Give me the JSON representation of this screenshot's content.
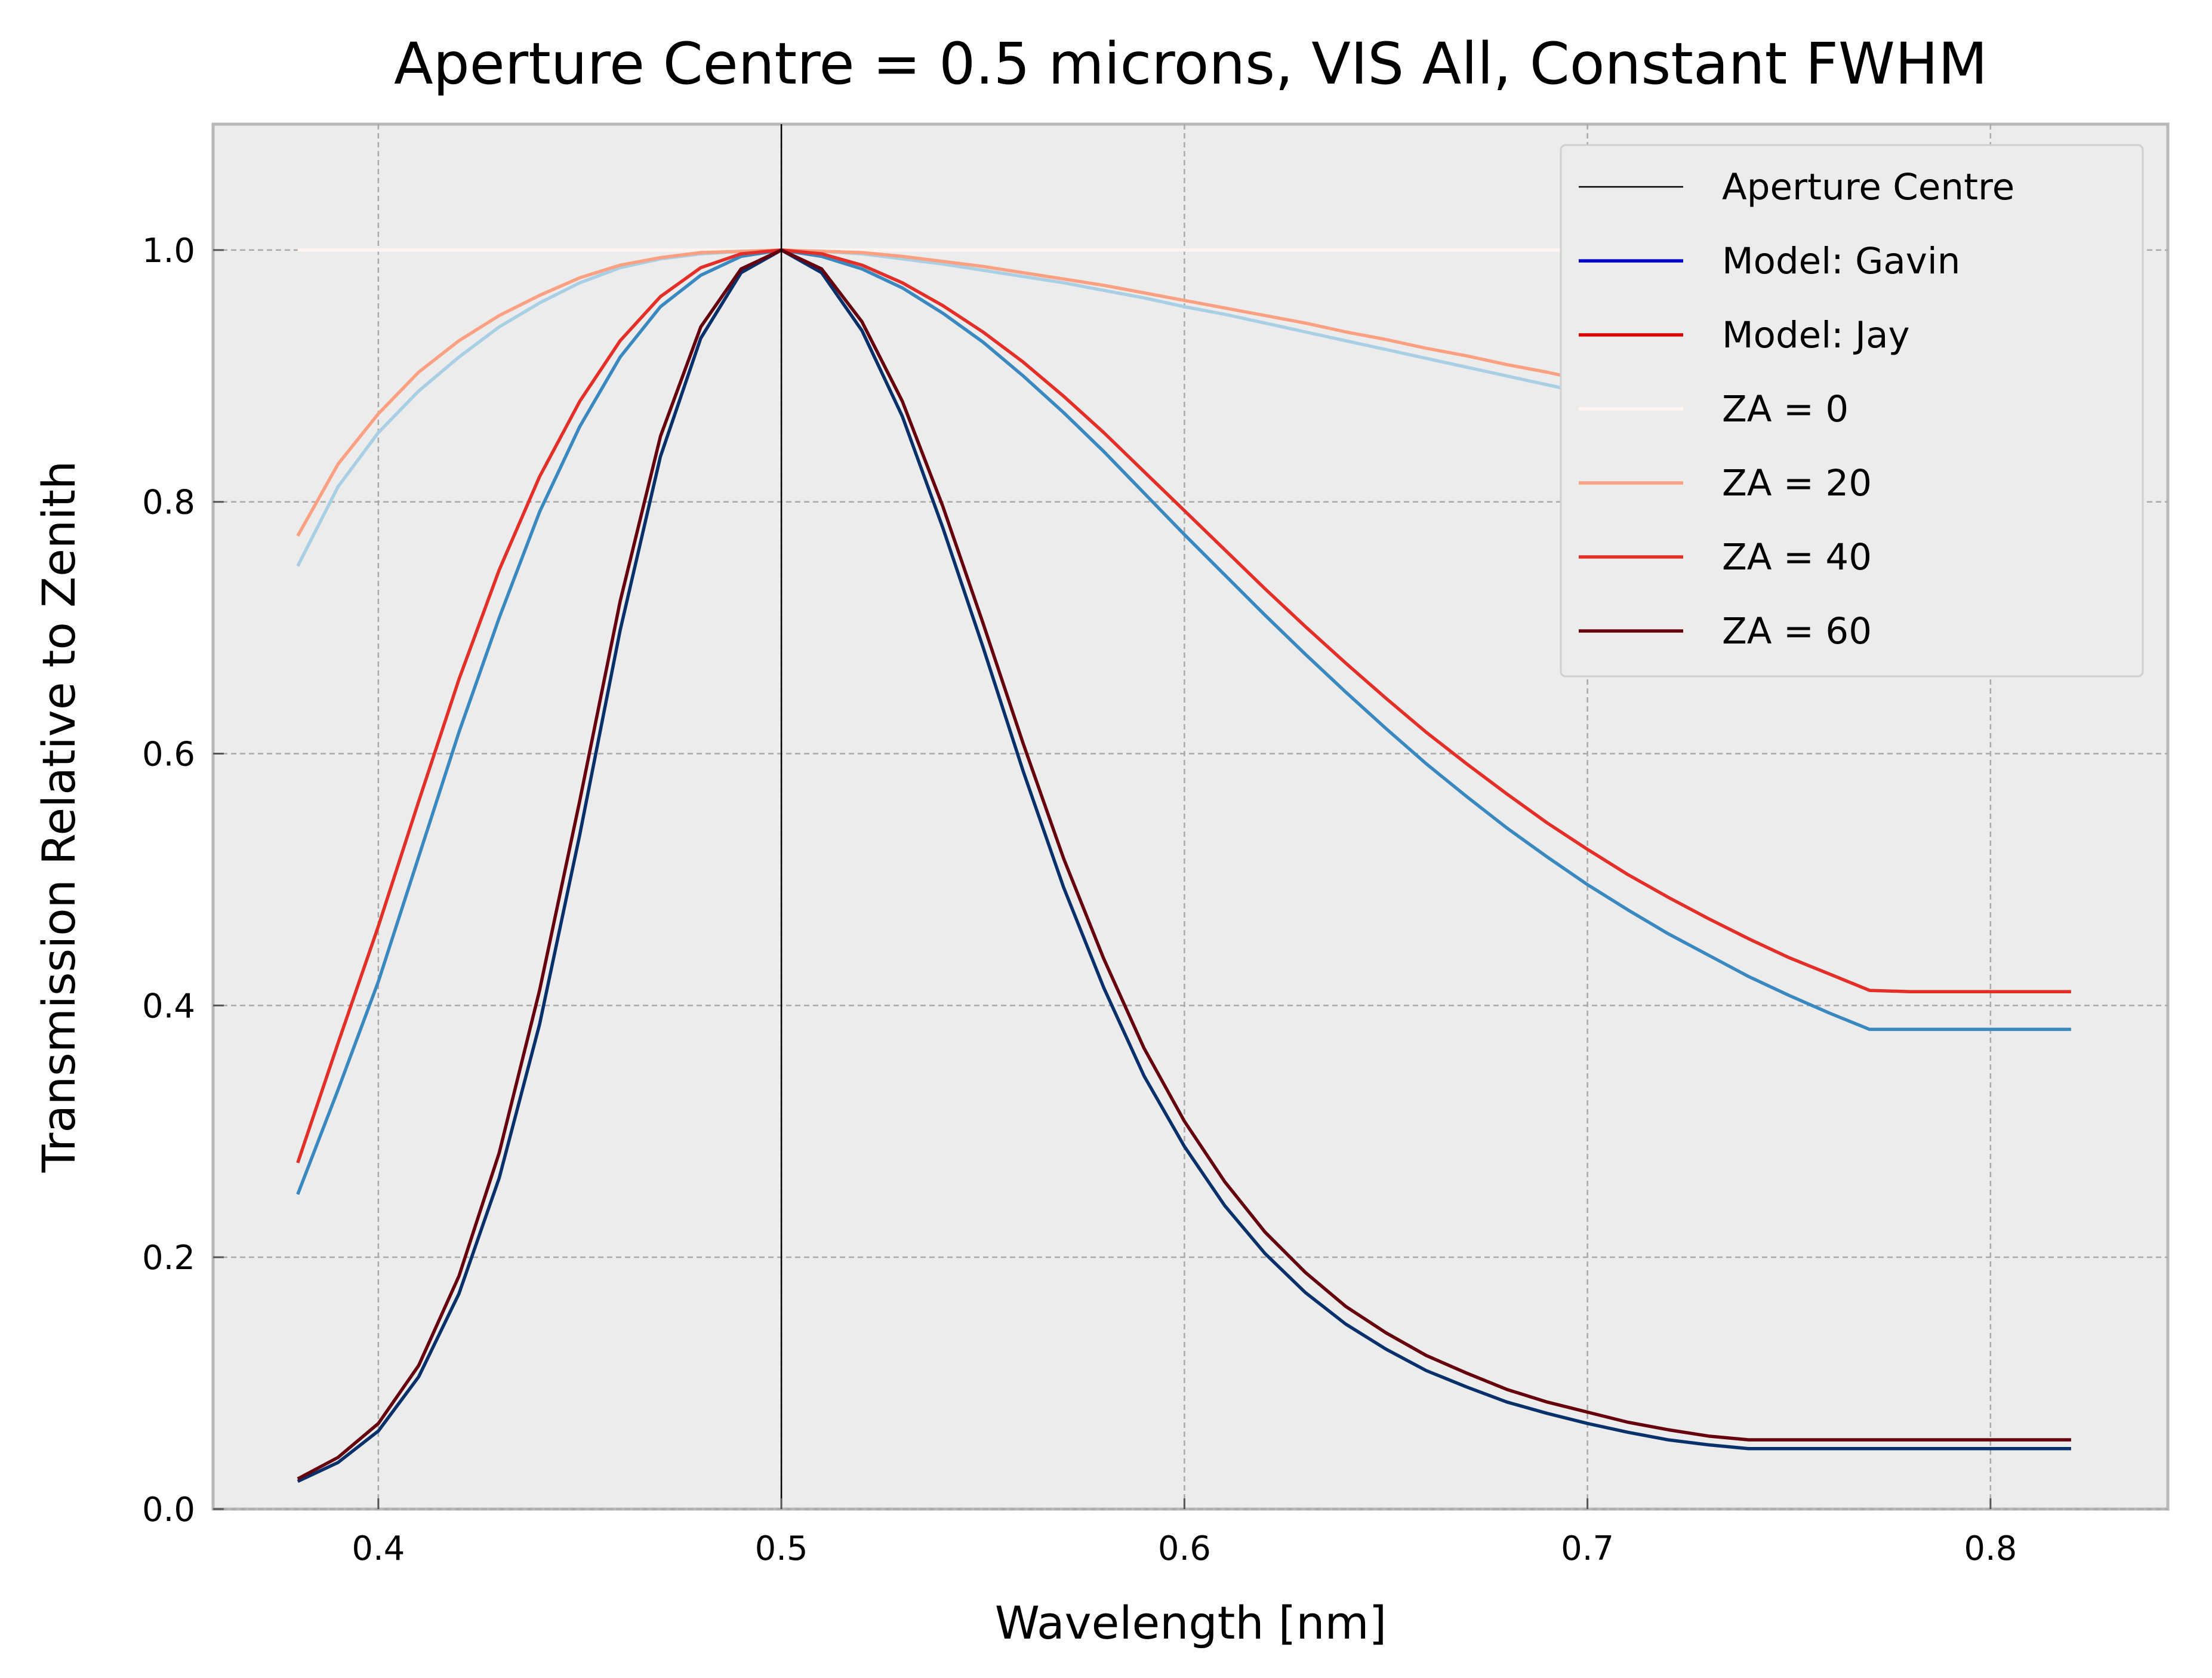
{
  "chart_data": {
    "type": "line",
    "title": "Aperture Centre = 0.5 microns, VIS All, Constant FWHM",
    "xlabel": "Wavelength [nm]",
    "ylabel": "Transmission Relative to Zenith",
    "xlim": [
      0.359,
      0.844
    ],
    "ylim": [
      0.0,
      1.1
    ],
    "x_ticks": [
      0.4,
      0.5,
      0.6,
      0.7,
      0.8
    ],
    "x_tick_labels": [
      "0.4",
      "0.5",
      "0.6",
      "0.7",
      "0.8"
    ],
    "y_ticks": [
      0.0,
      0.2,
      0.4,
      0.6,
      0.8,
      1.0
    ],
    "y_tick_labels": [
      "0.0",
      "0.2",
      "0.4",
      "0.6",
      "0.8",
      "1.0"
    ],
    "grid": true,
    "legend_position": "top-right",
    "aperture_centre": 0.5,
    "x": [
      0.38,
      0.39,
      0.4,
      0.41,
      0.42,
      0.43,
      0.44,
      0.45,
      0.46,
      0.47,
      0.48,
      0.49,
      0.5,
      0.51,
      0.52,
      0.53,
      0.54,
      0.55,
      0.56,
      0.57,
      0.58,
      0.59,
      0.6,
      0.61,
      0.62,
      0.63,
      0.64,
      0.65,
      0.66,
      0.67,
      0.68,
      0.69,
      0.7,
      0.71,
      0.72,
      0.73,
      0.74,
      0.75,
      0.76,
      0.77,
      0.78,
      0.79,
      0.8,
      0.81,
      0.82
    ],
    "legend": [
      {
        "label": "Aperture Centre",
        "color": "#000000"
      },
      {
        "label": "Model: Gavin",
        "color": "#0000cc"
      },
      {
        "label": "Model: Jay",
        "color": "#dd0000"
      },
      {
        "label": "ZA =  0",
        "color": "#fff5f0"
      },
      {
        "label": "ZA = 20",
        "color": "#fca082"
      },
      {
        "label": "ZA = 40",
        "color": "#e32f27"
      },
      {
        "label": "ZA = 60",
        "color": "#67000d"
      }
    ],
    "series": [
      {
        "model": "Jay",
        "za": 0,
        "color": "#fff5f0",
        "values": [
          1.0,
          1.0,
          1.0,
          1.0,
          1.0,
          1.0,
          1.0,
          1.0,
          1.0,
          1.0,
          1.0,
          1.0,
          1.0,
          1.0,
          1.0,
          1.0,
          1.0,
          1.0,
          1.0,
          1.0,
          1.0,
          1.0,
          1.0,
          1.0,
          1.0,
          1.0,
          1.0,
          1.0,
          1.0,
          1.0,
          1.0,
          1.0,
          1.0,
          1.0,
          1.0,
          1.0,
          1.0,
          1.0,
          1.0,
          1.0,
          1.0,
          1.0,
          1.0,
          1.0,
          1.0
        ]
      },
      {
        "model": "Gavin",
        "za": 20,
        "color": "#a9cfe5",
        "values": [
          0.749,
          0.812,
          0.855,
          0.888,
          0.915,
          0.939,
          0.958,
          0.974,
          0.986,
          0.993,
          0.997,
          0.999,
          1.0,
          0.999,
          0.997,
          0.993,
          0.989,
          0.984,
          0.979,
          0.974,
          0.968,
          0.962,
          0.955,
          0.949,
          0.942,
          0.935,
          0.928,
          0.921,
          0.914,
          0.907,
          0.9,
          0.893,
          0.886,
          0.879,
          0.873,
          0.866,
          0.859,
          0.853,
          0.847,
          0.841,
          0.836,
          0.83,
          0.825,
          0.825,
          0.825
        ]
      },
      {
        "model": "Jay",
        "za": 20,
        "color": "#fca082",
        "values": [
          0.773,
          0.83,
          0.87,
          0.903,
          0.928,
          0.948,
          0.964,
          0.978,
          0.988,
          0.994,
          0.998,
          0.999,
          1.0,
          0.999,
          0.998,
          0.995,
          0.991,
          0.987,
          0.982,
          0.977,
          0.972,
          0.966,
          0.96,
          0.954,
          0.948,
          0.942,
          0.935,
          0.929,
          0.922,
          0.916,
          0.909,
          0.903,
          0.896,
          0.89,
          0.884,
          0.878,
          0.872,
          0.866,
          0.861,
          0.856,
          0.851,
          0.846,
          0.843,
          0.843,
          0.843
        ]
      },
      {
        "model": "Gavin",
        "za": 40,
        "color": "#3a88c0",
        "values": [
          0.25,
          0.333,
          0.419,
          0.518,
          0.617,
          0.708,
          0.792,
          0.86,
          0.915,
          0.955,
          0.98,
          0.995,
          1.0,
          0.995,
          0.985,
          0.97,
          0.95,
          0.927,
          0.9,
          0.871,
          0.84,
          0.807,
          0.774,
          0.742,
          0.71,
          0.679,
          0.649,
          0.62,
          0.592,
          0.566,
          0.541,
          0.518,
          0.496,
          0.476,
          0.457,
          0.44,
          0.423,
          0.408,
          0.394,
          0.381,
          0.381,
          0.381,
          0.381,
          0.381,
          0.381
        ]
      },
      {
        "model": "Jay",
        "za": 40,
        "color": "#e32f27",
        "values": [
          0.275,
          0.37,
          0.463,
          0.562,
          0.659,
          0.746,
          0.82,
          0.88,
          0.928,
          0.963,
          0.986,
          0.997,
          1.0,
          0.997,
          0.988,
          0.974,
          0.956,
          0.935,
          0.911,
          0.884,
          0.855,
          0.824,
          0.793,
          0.762,
          0.731,
          0.701,
          0.672,
          0.644,
          0.617,
          0.592,
          0.568,
          0.545,
          0.524,
          0.504,
          0.486,
          0.469,
          0.453,
          0.438,
          0.425,
          0.412,
          0.411,
          0.411,
          0.411,
          0.411,
          0.411
        ]
      },
      {
        "model": "Gavin",
        "za": 60,
        "color": "#08306b",
        "values": [
          0.022,
          0.037,
          0.062,
          0.105,
          0.171,
          0.263,
          0.385,
          0.536,
          0.698,
          0.836,
          0.93,
          0.982,
          1.0,
          0.982,
          0.936,
          0.868,
          0.78,
          0.685,
          0.586,
          0.494,
          0.414,
          0.344,
          0.288,
          0.241,
          0.203,
          0.172,
          0.147,
          0.127,
          0.11,
          0.097,
          0.085,
          0.076,
          0.068,
          0.061,
          0.055,
          0.051,
          0.048,
          0.048,
          0.048,
          0.048,
          0.048,
          0.048,
          0.048,
          0.048,
          0.048
        ]
      },
      {
        "model": "Jay",
        "za": 60,
        "color": "#67000d",
        "values": [
          0.024,
          0.041,
          0.068,
          0.114,
          0.185,
          0.283,
          0.412,
          0.563,
          0.721,
          0.852,
          0.939,
          0.985,
          1.0,
          0.985,
          0.943,
          0.88,
          0.797,
          0.704,
          0.608,
          0.517,
          0.437,
          0.366,
          0.308,
          0.26,
          0.22,
          0.188,
          0.161,
          0.14,
          0.122,
          0.108,
          0.095,
          0.085,
          0.077,
          0.069,
          0.063,
          0.058,
          0.055,
          0.055,
          0.055,
          0.055,
          0.055,
          0.055,
          0.055,
          0.055,
          0.055
        ]
      }
    ]
  }
}
